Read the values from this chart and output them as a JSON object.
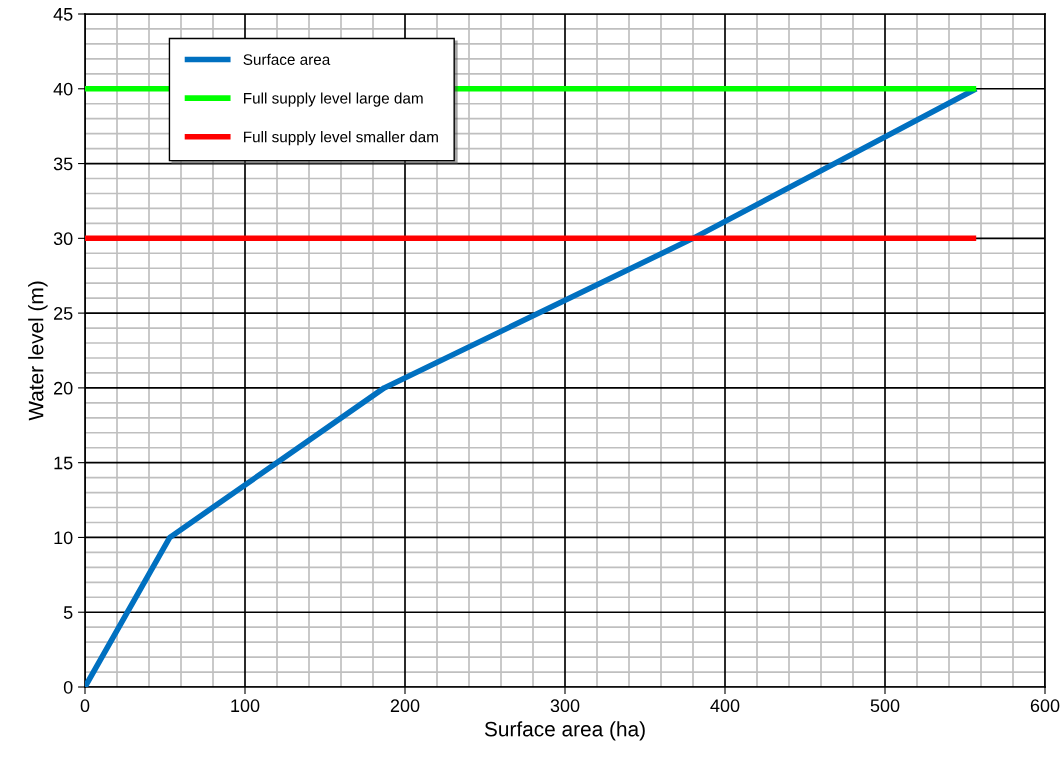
{
  "chart_data": {
    "type": "line",
    "xlabel": "Surface area (ha)",
    "ylabel": "Water level (m)",
    "xlim": [
      0,
      600
    ],
    "xticks": [
      0,
      100,
      200,
      300,
      400,
      500,
      600
    ],
    "ylim": [
      0,
      45
    ],
    "yticks": [
      0,
      5,
      10,
      15,
      20,
      25,
      30,
      35,
      40,
      45
    ],
    "grid": true,
    "legend": "top left",
    "marker": "none",
    "line_style": "solid",
    "series": [
      {
        "name": "Surface area",
        "color": "#0070c0",
        "x": [
          0,
          53,
          187,
          380,
          557
        ],
        "values": [
          0,
          10,
          20,
          30,
          40
        ]
      },
      {
        "name": "Full supply level large dam",
        "color": "#00ff00",
        "x": [
          0,
          557
        ],
        "values": [
          40,
          40
        ]
      },
      {
        "name": "Full supply level smaller dam",
        "color": "#ff0000",
        "x": [
          0,
          557
        ],
        "values": [
          30,
          30
        ]
      }
    ]
  }
}
